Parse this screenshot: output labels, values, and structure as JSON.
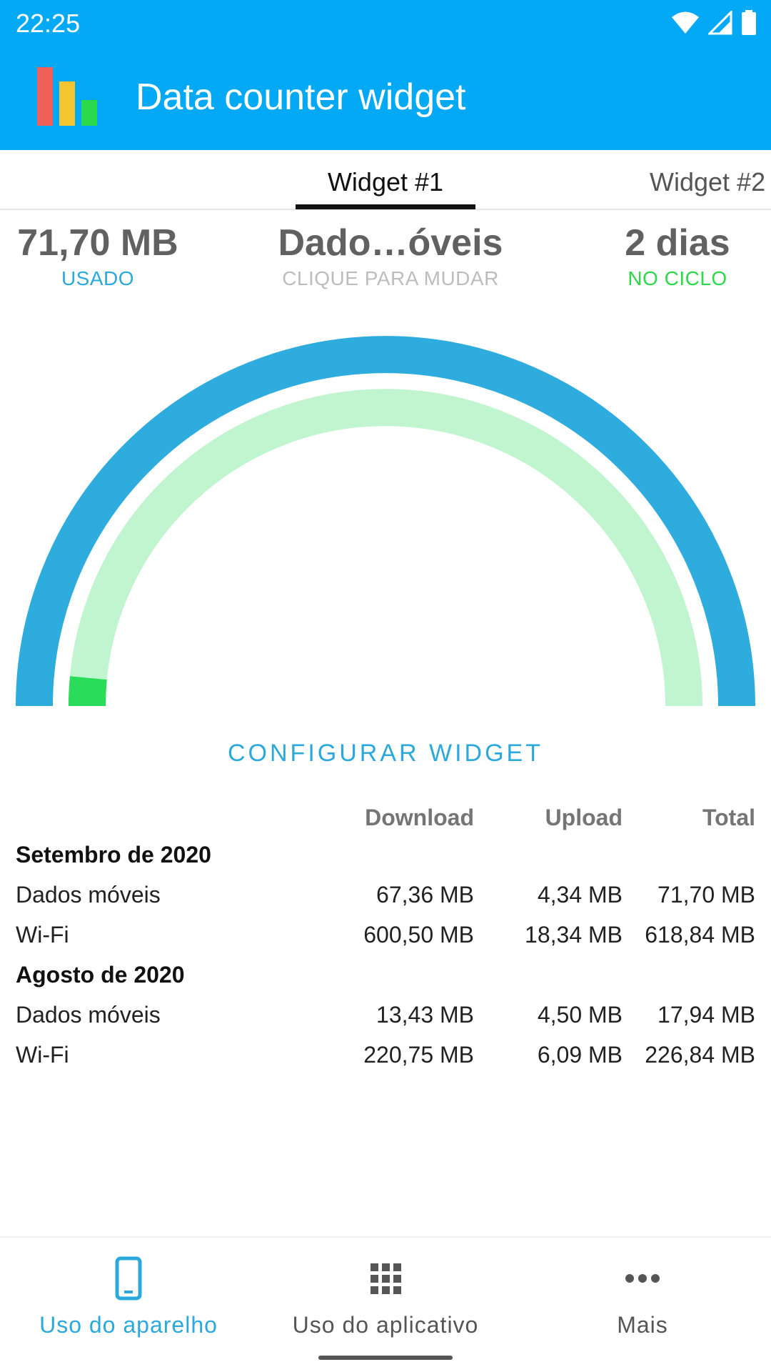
{
  "status_bar": {
    "time": "22:25"
  },
  "app_bar": {
    "title": "Data counter widget"
  },
  "tabs": [
    {
      "label": "Widget #1",
      "selected": true
    },
    {
      "label": "Widget #2",
      "selected": false
    }
  ],
  "summary": {
    "used_value": "71,70 MB",
    "used_label": "USADO",
    "type_value": "Dado…óveis",
    "type_label": "CLIQUE PARA MUDAR",
    "days_value": "2 dias",
    "days_label": "NO CICLO"
  },
  "gauge": {
    "colors": {
      "outer": "#2EACDE",
      "inner_track": "#C1F5D0",
      "inner_fill": "#2BDB5A"
    },
    "inner_fill_fraction": 0.03
  },
  "configure_button": "CONFIGURAR WIDGET",
  "usage_table": {
    "headers": [
      "",
      "Download",
      "Upload",
      "Total"
    ],
    "sections": [
      {
        "title": "Setembro de 2020",
        "rows": [
          [
            "Dados móveis",
            "67,36 MB",
            "4,34 MB",
            "71,70 MB"
          ],
          [
            "Wi-Fi",
            "600,50 MB",
            "18,34 MB",
            "618,84 MB"
          ]
        ]
      },
      {
        "title": "Agosto de 2020",
        "rows": [
          [
            "Dados móveis",
            "13,43 MB",
            "4,50 MB",
            "17,94 MB"
          ],
          [
            "Wi-Fi",
            "220,75 MB",
            "6,09 MB",
            "226,84 MB"
          ]
        ]
      }
    ]
  },
  "bottom_nav": [
    {
      "label": "Uso do aparelho",
      "icon": "phone-icon",
      "active": true
    },
    {
      "label": "Uso do aplicativo",
      "icon": "apps-grid-icon",
      "active": false
    },
    {
      "label": "Mais",
      "icon": "more-horizontal-icon",
      "active": false
    }
  ],
  "colors": {
    "primary": "#03A9F4",
    "accent": "#2BA8DC",
    "green": "#2BD94A"
  }
}
